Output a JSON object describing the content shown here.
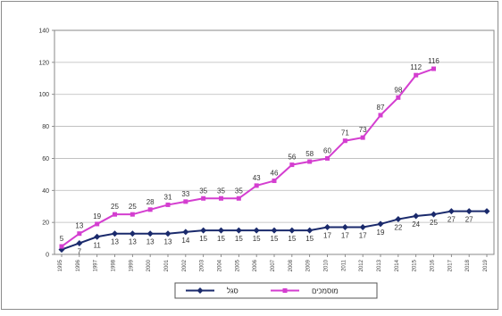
{
  "chart_data": {
    "type": "line",
    "title": "",
    "xlabel": "",
    "ylabel": "",
    "ylim": [
      0,
      140
    ],
    "yticks": [
      0,
      20,
      40,
      60,
      80,
      100,
      120,
      140
    ],
    "grid": true,
    "legend_position": "bottom",
    "categories": [
      "1995",
      "1996",
      "1997",
      "1998",
      "1999",
      "2000",
      "2001",
      "2002",
      "2003",
      "2004",
      "2005",
      "2006",
      "2007",
      "2008",
      "2009",
      "2010",
      "2011",
      "2012",
      "2013",
      "2014",
      "2015",
      "2016",
      "2017",
      "2018",
      "2019"
    ],
    "series": [
      {
        "name": "סגל",
        "color": "#1a2a6c",
        "marker": "diamond",
        "values": [
          3,
          7,
          11,
          13,
          13,
          13,
          13,
          14,
          15,
          15,
          15,
          15,
          15,
          15,
          15,
          17,
          17,
          17,
          19,
          22,
          24,
          25,
          27,
          27,
          27
        ],
        "labels": [
          "",
          "7",
          "11",
          "13",
          "13",
          "13",
          "13",
          "14",
          "15",
          "15",
          "15",
          "15",
          "15",
          "15",
          "15",
          "17",
          "17",
          "17",
          "19",
          "22",
          "24",
          "25",
          "27",
          "27",
          ""
        ]
      },
      {
        "name": "מוסמכים",
        "color": "#d43ed0",
        "marker": "square",
        "values": [
          5,
          13,
          19,
          25,
          25,
          28,
          31,
          33,
          35,
          35,
          35,
          43,
          46,
          56,
          58,
          60,
          71,
          73,
          87,
          98,
          112,
          116,
          null,
          null,
          null
        ],
        "labels": [
          "5",
          "13",
          "19",
          "25",
          "25",
          "28",
          "31",
          "33",
          "35",
          "35",
          "35",
          "43",
          "46",
          "56",
          "58",
          "60",
          "71",
          "73",
          "87",
          "98",
          "112",
          "116",
          "",
          "",
          ""
        ]
      }
    ]
  }
}
